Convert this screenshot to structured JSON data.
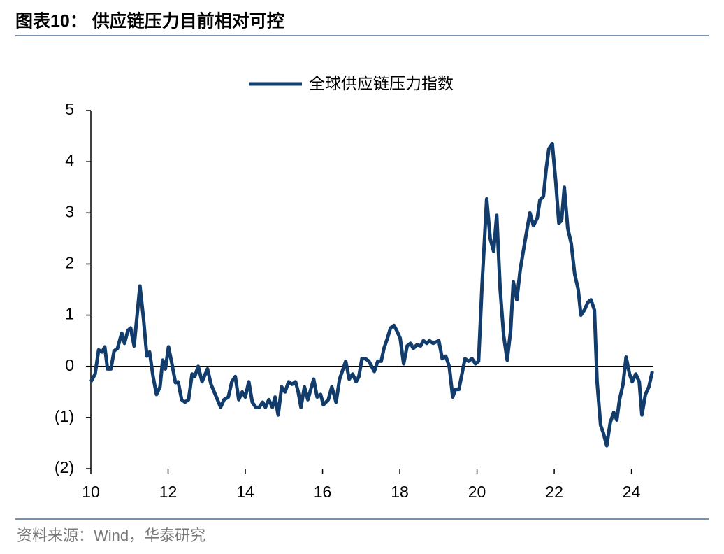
{
  "header": {
    "title": "图表10：  供应链压力目前相对可控"
  },
  "chart_data": {
    "type": "line",
    "xlim": [
      10,
      24.55
    ],
    "xticks": [
      10,
      12,
      14,
      16,
      18,
      20,
      22,
      24
    ],
    "ylim": [
      -2,
      5
    ],
    "yticks": [
      {
        "value": -2,
        "label": "(2)"
      },
      {
        "value": -1,
        "label": "(1)"
      },
      0,
      1,
      2,
      3,
      4,
      5
    ],
    "legend": "top",
    "series": [
      {
        "name": "全球供应链压力指数",
        "color": "#123c6b",
        "x": [
          10.0,
          10.11,
          10.2,
          10.29,
          10.36,
          10.43,
          10.52,
          10.6,
          10.69,
          10.8,
          10.87,
          10.96,
          11.03,
          11.12,
          11.27,
          11.36,
          11.45,
          11.52,
          11.61,
          11.7,
          11.79,
          11.86,
          11.93,
          12.01,
          12.1,
          12.19,
          12.26,
          12.35,
          12.44,
          12.53,
          12.62,
          12.69,
          12.78,
          12.88,
          13.02,
          13.11,
          13.25,
          13.36,
          13.45,
          13.56,
          13.65,
          13.74,
          13.83,
          13.92,
          14.0,
          14.09,
          14.18,
          14.27,
          14.36,
          14.45,
          14.52,
          14.61,
          14.7,
          14.77,
          14.85,
          14.94,
          15.03,
          15.12,
          15.21,
          15.3,
          15.37,
          15.44,
          15.53,
          15.62,
          15.77,
          15.86,
          15.95,
          16.02,
          16.15,
          16.24,
          16.35,
          16.44,
          16.6,
          16.69,
          16.78,
          16.87,
          16.94,
          17.02,
          17.11,
          17.2,
          17.34,
          17.43,
          17.52,
          17.59,
          17.68,
          17.76,
          17.85,
          17.92,
          18.01,
          18.1,
          18.19,
          18.28,
          18.35,
          18.44,
          18.54,
          18.61,
          18.7,
          18.77,
          18.86,
          19.01,
          19.1,
          19.19,
          19.28,
          19.37,
          19.44,
          19.53,
          19.69,
          19.78,
          19.87,
          19.96,
          20.04,
          20.13,
          20.25,
          20.34,
          20.43,
          20.51,
          20.6,
          20.69,
          20.78,
          20.87,
          20.94,
          21.03,
          21.12,
          21.21,
          21.3,
          21.37,
          21.46,
          21.56,
          21.63,
          21.72,
          21.79,
          21.86,
          21.95,
          22.04,
          22.12,
          22.19,
          22.26,
          22.35,
          22.44,
          22.53,
          22.62,
          22.69,
          22.78,
          22.87,
          22.95,
          23.04,
          23.11,
          23.2,
          23.27,
          23.36,
          23.45,
          23.54,
          23.62,
          23.69,
          23.78,
          23.86,
          23.95,
          24.02,
          24.11,
          24.2,
          24.27,
          24.36,
          24.45,
          24.54
        ],
        "values": [
          -0.3,
          -0.15,
          0.32,
          0.28,
          0.38,
          -0.05,
          -0.05,
          0.3,
          0.35,
          0.65,
          0.45,
          0.7,
          0.75,
          0.4,
          1.57,
          0.95,
          0.2,
          0.28,
          -0.2,
          -0.55,
          -0.4,
          0.12,
          -0.05,
          0.38,
          0.05,
          -0.32,
          -0.3,
          -0.65,
          -0.7,
          -0.65,
          -0.15,
          -0.2,
          0.0,
          -0.3,
          -0.05,
          -0.35,
          -0.6,
          -0.8,
          -0.65,
          -0.6,
          -0.3,
          -0.2,
          -0.65,
          -0.5,
          -0.6,
          -0.3,
          -0.7,
          -0.8,
          -0.8,
          -0.7,
          -0.8,
          -0.65,
          -0.8,
          -0.6,
          -0.95,
          -0.4,
          -0.5,
          -0.3,
          -0.35,
          -0.3,
          -0.5,
          -0.8,
          -0.4,
          -0.65,
          -0.25,
          -0.6,
          -0.55,
          -0.75,
          -0.65,
          -0.4,
          -0.7,
          -0.25,
          0.1,
          -0.25,
          -0.15,
          -0.3,
          -0.2,
          0.15,
          0.15,
          0.1,
          -0.1,
          0.1,
          0.1,
          0.35,
          0.55,
          0.75,
          0.8,
          0.7,
          0.55,
          0.05,
          0.4,
          0.45,
          0.35,
          0.42,
          0.4,
          0.5,
          0.45,
          0.5,
          0.45,
          0.5,
          0.15,
          0.2,
          0.0,
          -0.6,
          -0.45,
          -0.45,
          0.15,
          0.1,
          0.15,
          0.05,
          0.1,
          1.6,
          3.27,
          2.5,
          2.25,
          2.95,
          1.5,
          0.6,
          0.12,
          0.7,
          1.65,
          1.3,
          1.9,
          2.3,
          2.7,
          3.0,
          2.75,
          2.9,
          3.25,
          3.32,
          3.85,
          4.25,
          4.35,
          3.6,
          2.8,
          2.85,
          3.5,
          2.7,
          2.4,
          1.8,
          1.5,
          1.0,
          1.1,
          1.25,
          1.3,
          1.1,
          -0.3,
          -1.15,
          -1.3,
          -1.55,
          -1.1,
          -0.9,
          -1.05,
          -0.65,
          -0.35,
          0.18,
          -0.15,
          -0.3,
          -0.15,
          -0.3,
          -0.95,
          -0.55,
          -0.4,
          -0.1
        ]
      }
    ]
  },
  "footer": {
    "source": "资料来源：Wind，华泰研究"
  }
}
